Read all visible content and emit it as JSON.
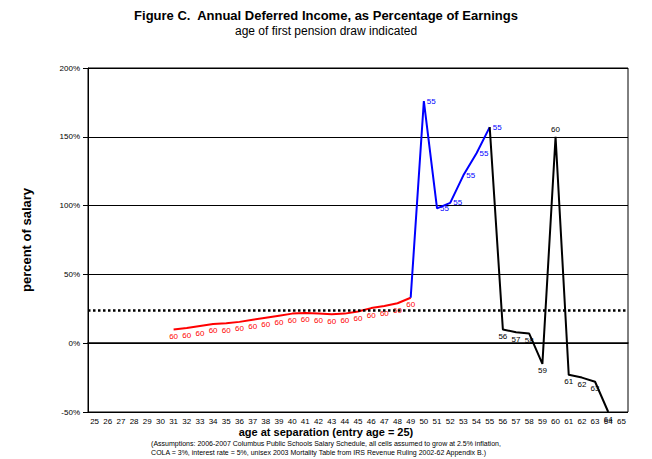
{
  "chart_data": {
    "type": "line",
    "title": "Figure C.  Annual Deferred Income, as Percentage of Earnings",
    "subtitle": "age of first pension draw indicated",
    "x_label": "age at separation (entry age = 25)",
    "y_label": "percent of salary",
    "note": [
      "(Assumptions: 2006-2007 Columbus Public Schools Salary Schedule, all cells assumed to grow at 2.5% inflation,",
      "COLA = 3%, interest rate = 5%, unisex 2003 Mortality Table from IRS Revenue Ruling 2002-62 Appendix B.)"
    ],
    "categories": [
      "25",
      "26",
      "27",
      "28",
      "29",
      "30",
      "31",
      "32",
      "33",
      "34",
      "35",
      "36",
      "37",
      "38",
      "39",
      "40",
      "41",
      "42",
      "43",
      "44",
      "45",
      "46",
      "47",
      "48",
      "49",
      "50",
      "51",
      "52",
      "53",
      "54",
      "55",
      "56",
      "57",
      "58",
      "59",
      "60",
      "61",
      "62",
      "63",
      "64",
      "65"
    ],
    "ylim": [
      -50,
      200
    ],
    "yticks": [
      {
        "value": -50,
        "label": "-50%"
      },
      {
        "value": 0,
        "label": "0%"
      },
      {
        "value": 50,
        "label": "50%"
      },
      {
        "value": 100,
        "label": "100%"
      },
      {
        "value": 150,
        "label": "150%"
      },
      {
        "value": 200,
        "label": "200%"
      }
    ],
    "grid": true,
    "reference_line": {
      "value": 24,
      "line_style": "dotted",
      "color": "#000000"
    },
    "series": [
      {
        "color": "#ff0000",
        "values": [
          null,
          null,
          null,
          null,
          null,
          null,
          10,
          11,
          12.5,
          14,
          14.5,
          15.5,
          17,
          18.5,
          20,
          21.5,
          22,
          21.5,
          21,
          21.5,
          23,
          25.5,
          27,
          29,
          33,
          null,
          null,
          null,
          null,
          null,
          null,
          null,
          null,
          null,
          null,
          null,
          null,
          null,
          null,
          null,
          null
        ],
        "draw_age": [
          null,
          null,
          null,
          null,
          null,
          null,
          60,
          60,
          60,
          60,
          60,
          60,
          60,
          60,
          60,
          60,
          60,
          60,
          60,
          60,
          60,
          60,
          60,
          60,
          60,
          null,
          null,
          null,
          null,
          null,
          null,
          null,
          null,
          null,
          null,
          null,
          null,
          null,
          null,
          null,
          null
        ]
      },
      {
        "color": "#0000ff",
        "values": [
          null,
          null,
          null,
          null,
          null,
          null,
          null,
          null,
          null,
          null,
          null,
          null,
          null,
          null,
          null,
          null,
          null,
          null,
          null,
          null,
          null,
          null,
          null,
          null,
          33,
          176,
          98,
          102,
          122,
          138,
          157,
          null,
          null,
          null,
          null,
          null,
          null,
          null,
          null,
          null,
          null
        ],
        "draw_age": [
          null,
          null,
          null,
          null,
          null,
          null,
          null,
          null,
          null,
          null,
          null,
          null,
          null,
          null,
          null,
          null,
          null,
          null,
          null,
          null,
          null,
          null,
          null,
          null,
          null,
          55,
          55,
          55,
          55,
          55,
          55,
          null,
          null,
          null,
          null,
          null,
          null,
          null,
          null,
          null,
          null
        ]
      },
      {
        "color": "#000000",
        "values": [
          null,
          null,
          null,
          null,
          null,
          null,
          null,
          null,
          null,
          null,
          null,
          null,
          null,
          null,
          null,
          null,
          null,
          null,
          null,
          null,
          null,
          null,
          null,
          null,
          null,
          null,
          null,
          null,
          null,
          null,
          157,
          10,
          8,
          7,
          -15,
          150,
          -23,
          -25,
          -28,
          -50,
          null
        ],
        "draw_age": [
          null,
          null,
          null,
          null,
          null,
          null,
          null,
          null,
          null,
          null,
          null,
          null,
          null,
          null,
          null,
          null,
          null,
          null,
          null,
          null,
          null,
          null,
          null,
          null,
          null,
          null,
          null,
          null,
          null,
          null,
          null,
          56,
          57,
          58,
          59,
          60,
          61,
          62,
          63,
          64,
          null
        ]
      }
    ]
  }
}
